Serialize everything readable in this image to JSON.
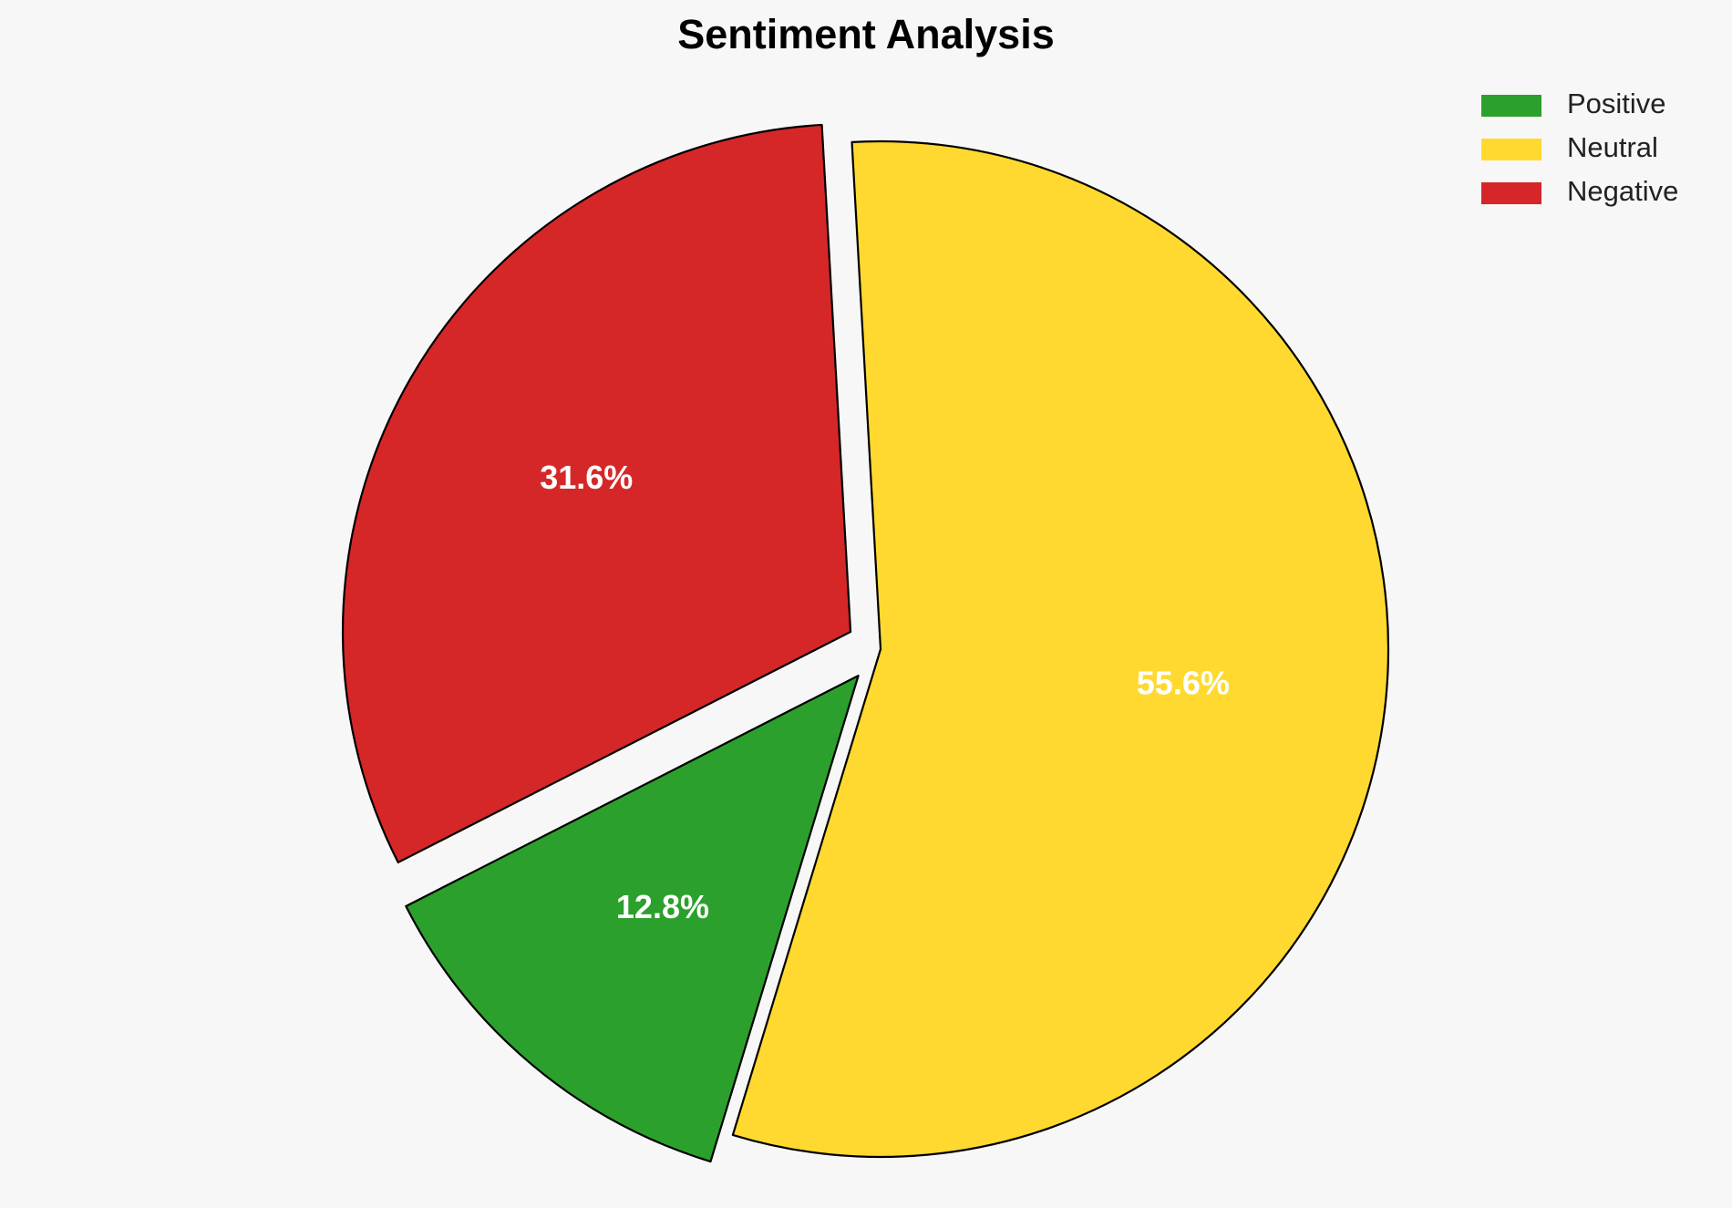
{
  "chart_data": {
    "type": "pie",
    "title": "Sentiment Analysis",
    "categories": [
      "Positive",
      "Neutral",
      "Negative"
    ],
    "values": [
      12.8,
      55.6,
      31.6
    ],
    "labels": [
      "12.8%",
      "55.6%",
      "31.6%"
    ],
    "colors": [
      "#2ca02c",
      "#ffd92f",
      "#d62728"
    ],
    "exploded": [
      true,
      false,
      true
    ],
    "legend_position": "top-right"
  }
}
